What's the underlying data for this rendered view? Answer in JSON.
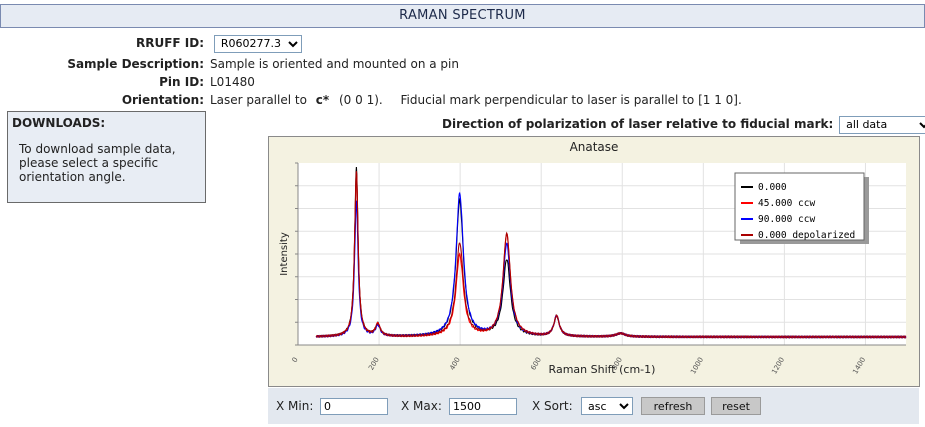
{
  "header": {
    "title": "RAMAN SPECTRUM"
  },
  "info": {
    "rruff_label": "RRUFF ID:",
    "rruff_value": "R060277.3",
    "sample_label": "Sample Description:",
    "sample_value": "Sample is oriented and mounted on a pin",
    "pin_label": "Pin ID:",
    "pin_value": "L01480",
    "orient_label": "Orientation:",
    "orient_prefix": "Laser parallel to",
    "orient_axis": "c*",
    "orient_axis_idx": "(0 0 1).",
    "orient_suffix": "Fiducial mark perpendicular to laser is parallel to  [1 1 0]."
  },
  "downloads": {
    "title": "DOWNLOADS:",
    "text": "To download sample data, please select a specific orientation angle."
  },
  "polarization": {
    "label": "Direction of polarization of laser relative to fiducial mark:",
    "value": "all data"
  },
  "controls": {
    "xmin_label": "X Min:",
    "xmin_value": "0",
    "xmax_label": "X Max:",
    "xmax_value": "1500",
    "xsort_label": "X Sort:",
    "xsort_value": "asc",
    "refresh_label": "refresh",
    "reset_label": "reset"
  },
  "chart_data": {
    "type": "line",
    "title": "Anatase",
    "xlabel": "Raman Shift (cm-1)",
    "ylabel": "Intensity",
    "xlim": [
      0,
      1500
    ],
    "ylim": [
      0,
      1
    ],
    "xticks": [
      0,
      200,
      400,
      600,
      800,
      1000,
      1200,
      1400
    ],
    "grid": true,
    "legend_position": "top-right",
    "series": [
      {
        "name": "0.000",
        "color": "#000000",
        "peaks": [
          {
            "x": 144,
            "h": 1.0
          },
          {
            "x": 197,
            "h": 0.07
          },
          {
            "x": 399,
            "h": 0.8
          },
          {
            "x": 515,
            "h": 0.45
          },
          {
            "x": 638,
            "h": 0.12
          },
          {
            "x": 796,
            "h": 0.02
          }
        ]
      },
      {
        "name": "45.000 ccw",
        "color": "#ff0000",
        "peaks": [
          {
            "x": 144,
            "h": 0.97
          },
          {
            "x": 197,
            "h": 0.07
          },
          {
            "x": 399,
            "h": 0.48
          },
          {
            "x": 515,
            "h": 0.6
          },
          {
            "x": 638,
            "h": 0.12
          },
          {
            "x": 796,
            "h": 0.02
          }
        ]
      },
      {
        "name": "90.000 ccw",
        "color": "#0000ff",
        "peaks": [
          {
            "x": 144,
            "h": 0.8
          },
          {
            "x": 197,
            "h": 0.06
          },
          {
            "x": 399,
            "h": 0.84
          },
          {
            "x": 515,
            "h": 0.54
          },
          {
            "x": 638,
            "h": 0.12
          },
          {
            "x": 796,
            "h": 0.02
          }
        ]
      },
      {
        "name": "0.000 depolarized",
        "color": "#aa0000",
        "peaks": [
          {
            "x": 144,
            "h": 0.97
          },
          {
            "x": 197,
            "h": 0.07
          },
          {
            "x": 399,
            "h": 0.55
          },
          {
            "x": 515,
            "h": 0.6
          },
          {
            "x": 638,
            "h": 0.12
          },
          {
            "x": 796,
            "h": 0.02
          }
        ]
      }
    ]
  }
}
